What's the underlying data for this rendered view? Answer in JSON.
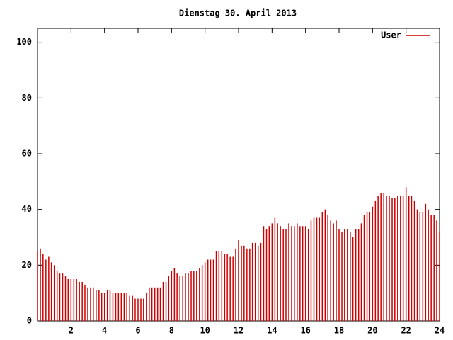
{
  "chart_data": {
    "type": "impulse",
    "title": "Dienstag 30. April 2013",
    "xlim": [
      0,
      24
    ],
    "xticks": [
      2,
      4,
      6,
      8,
      10,
      12,
      14,
      16,
      18,
      20,
      22,
      24
    ],
    "ylim": [
      0,
      105
    ],
    "yticks": [
      0,
      20,
      40,
      60,
      80,
      100
    ],
    "legend": "top-right",
    "series": [
      {
        "name": "User",
        "color": "#cc0000",
        "x": [
          0,
          0.17,
          0.33,
          0.5,
          0.67,
          0.83,
          1,
          1.17,
          1.33,
          1.5,
          1.67,
          1.83,
          2,
          2.17,
          2.33,
          2.5,
          2.67,
          2.83,
          3,
          3.17,
          3.33,
          3.5,
          3.67,
          3.83,
          4,
          4.17,
          4.33,
          4.5,
          4.67,
          4.83,
          5,
          5.17,
          5.33,
          5.5,
          5.67,
          5.83,
          6,
          6.17,
          6.33,
          6.5,
          6.67,
          6.83,
          7,
          7.17,
          7.33,
          7.5,
          7.67,
          7.83,
          8,
          8.17,
          8.33,
          8.5,
          8.67,
          8.83,
          9,
          9.17,
          9.33,
          9.5,
          9.67,
          9.83,
          10,
          10.17,
          10.33,
          10.5,
          10.67,
          10.83,
          11,
          11.17,
          11.33,
          11.5,
          11.67,
          11.83,
          12,
          12.17,
          12.33,
          12.5,
          12.67,
          12.83,
          13,
          13.17,
          13.33,
          13.5,
          13.67,
          13.83,
          14,
          14.17,
          14.33,
          14.5,
          14.67,
          14.83,
          15,
          15.17,
          15.33,
          15.5,
          15.67,
          15.83,
          16,
          16.17,
          16.33,
          16.5,
          16.67,
          16.83,
          17,
          17.17,
          17.33,
          17.5,
          17.67,
          17.83,
          18,
          18.17,
          18.33,
          18.5,
          18.67,
          18.83,
          19,
          19.17,
          19.33,
          19.5,
          19.67,
          19.83,
          20,
          20.17,
          20.33,
          20.5,
          20.67,
          20.83,
          21,
          21.17,
          21.33,
          21.5,
          21.67,
          21.83,
          22,
          22.17,
          22.33,
          22.5,
          22.67,
          22.83,
          23,
          23.17,
          23.33,
          23.5,
          23.67,
          23.83,
          24
        ],
        "values": [
          25,
          26,
          24,
          22,
          23,
          21,
          20,
          18,
          17,
          17,
          16,
          15,
          15,
          15,
          15,
          14,
          14,
          13,
          12,
          12,
          12,
          11,
          11,
          10,
          10,
          11,
          11,
          10,
          10,
          10,
          10,
          10,
          10,
          9,
          9,
          8,
          8,
          8,
          8,
          10,
          12,
          12,
          12,
          12,
          12,
          14,
          14,
          16,
          18,
          19,
          17,
          16,
          16,
          17,
          17,
          18,
          18,
          18,
          19,
          20,
          21,
          22,
          22,
          22,
          25,
          25,
          25,
          24,
          24,
          23,
          23,
          26,
          29,
          27,
          27,
          26,
          26,
          28,
          28,
          27,
          28,
          34,
          33,
          34,
          35,
          37,
          35,
          34,
          33,
          33,
          35,
          34,
          34,
          35,
          34,
          34,
          34,
          33,
          36,
          37,
          37,
          37,
          39,
          40,
          38,
          36,
          35,
          36,
          33,
          32,
          33,
          33,
          32,
          30,
          33,
          33,
          35,
          38,
          39,
          39,
          41,
          43,
          45,
          46,
          46,
          45,
          45,
          44,
          44,
          45,
          45,
          45,
          48,
          45,
          45,
          43,
          40,
          39,
          39,
          42,
          40,
          38,
          38,
          36,
          32
        ]
      }
    ]
  }
}
